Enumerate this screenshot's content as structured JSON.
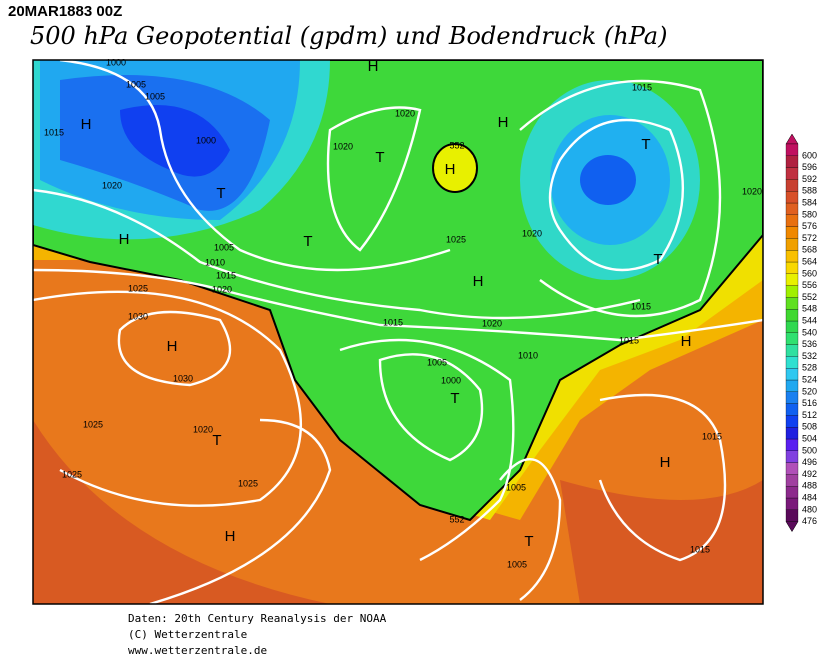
{
  "header": {
    "date": "20MAR1883 00Z",
    "title": "500 hPa Geopotential (gpdm) und Bodendruck (hPa)"
  },
  "map": {
    "labels": [
      "1000",
      "1005",
      "1005",
      "1015",
      "1000",
      "1020",
      "1005",
      "1010",
      "1015",
      "1020",
      "1025",
      "1030",
      "1030",
      "1025",
      "1020",
      "1025",
      "1025",
      "1020",
      "1020",
      "1025",
      "1020",
      "1015",
      "1020",
      "1010",
      "1005",
      "1000",
      "1015",
      "1015",
      "1015",
      "1015",
      "1015",
      "1005",
      "1005",
      "1020",
      "552",
      "552",
      "H",
      "H",
      "T",
      "H",
      "T",
      "T",
      "H",
      "H",
      "H",
      "T",
      "T",
      "H",
      "H",
      "T",
      "T",
      "H",
      "T",
      "H"
    ]
  },
  "colorbar": {
    "levels": [
      476,
      480,
      484,
      488,
      492,
      496,
      500,
      504,
      508,
      512,
      516,
      520,
      524,
      528,
      532,
      536,
      540,
      544,
      548,
      552,
      556,
      560,
      564,
      568,
      572,
      576,
      580,
      584,
      588,
      592,
      596,
      600
    ],
    "colors": [
      "#5a0a5a",
      "#7a1a7a",
      "#8c2a8c",
      "#a040a0",
      "#b050b8",
      "#8040e0",
      "#5a20f0",
      "#2020e0",
      "#1040f0",
      "#1060f0",
      "#1a80f0",
      "#20a8f0",
      "#30c8f0",
      "#30e0d0",
      "#30e0a0",
      "#30e070",
      "#30d850",
      "#40d830",
      "#60e020",
      "#a0f000",
      "#e8f000",
      "#f8d800",
      "#f8c000",
      "#f0a000",
      "#f08800",
      "#e87010",
      "#e06020",
      "#d85028",
      "#c84030",
      "#c03040",
      "#b02040",
      "#c01060"
    ]
  },
  "footer": {
    "lines": [
      "Daten: 20th Century Reanalysis der NOAA",
      "(C) Wetterzentrale",
      "www.wetterzentrale.de"
    ]
  }
}
